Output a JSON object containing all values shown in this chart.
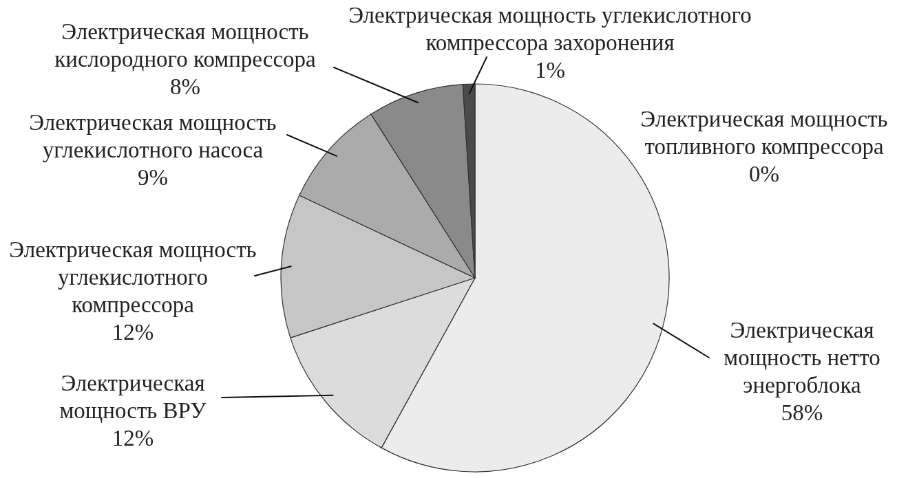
{
  "chart_data": {
    "type": "pie",
    "categories": [
      "Электрическая мощность топливного компрессора",
      "Электрическая мощность нетто энергоблока",
      "Электрическая мощность ВРУ",
      "Электрическая мощность углекислотного компрессора",
      "Электрическая мощность углекислотного насоса",
      "Электрическая мощность кислородного компрессора",
      "Электрическая мощность углекислотного компрессора захоронения"
    ],
    "values": [
      0,
      58,
      12,
      12,
      9,
      8,
      1
    ],
    "value_labels": [
      "0%",
      "58%",
      "12%",
      "12%",
      "9%",
      "8%",
      "1%"
    ],
    "colors": [
      "#d9d9d9",
      "#ececec",
      "#dcdcdc",
      "#c6c6c6",
      "#ababab",
      "#8a8a8a",
      "#4a4a4a"
    ]
  }
}
